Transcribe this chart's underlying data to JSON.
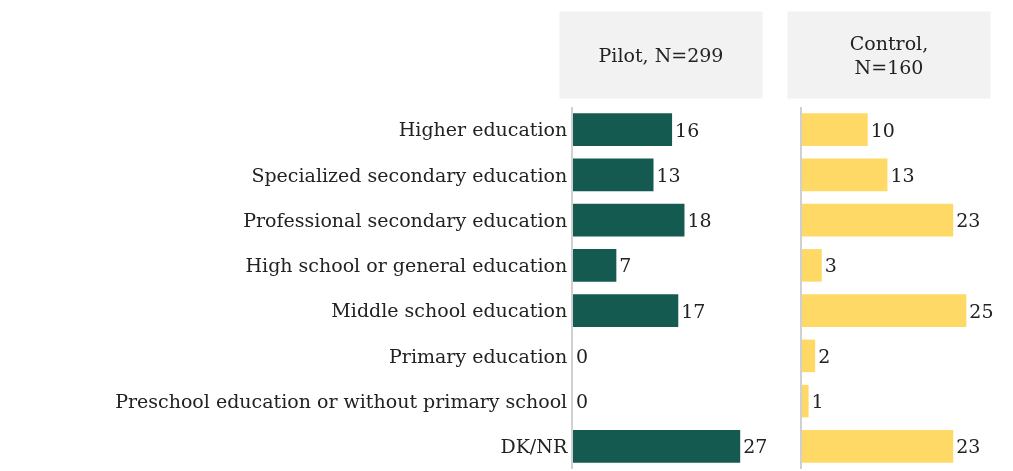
{
  "chart_data": [
    {
      "type": "bar",
      "orientation": "horizontal",
      "title": "Pilot, N=299",
      "categories": [
        "Higher education",
        "Specialized secondary education",
        "Professional secondary education",
        "High school or general education",
        "Middle school education",
        "Primary education",
        "Preschool education or without primary school",
        "DK/NR"
      ],
      "values": [
        16,
        13,
        18,
        7,
        17,
        0,
        0,
        27
      ],
      "color": "#145a50",
      "data_labels": true,
      "tick_labels": "y"
    },
    {
      "type": "bar",
      "orientation": "horizontal",
      "title": "Control,\nN=160",
      "categories": [
        null,
        null,
        null,
        null,
        null,
        null,
        null,
        null
      ],
      "values": [
        10,
        13,
        23,
        3,
        25,
        2,
        1,
        23
      ],
      "color": "#ffd966",
      "data_labels": true,
      "tick_labels": false
    }
  ]
}
